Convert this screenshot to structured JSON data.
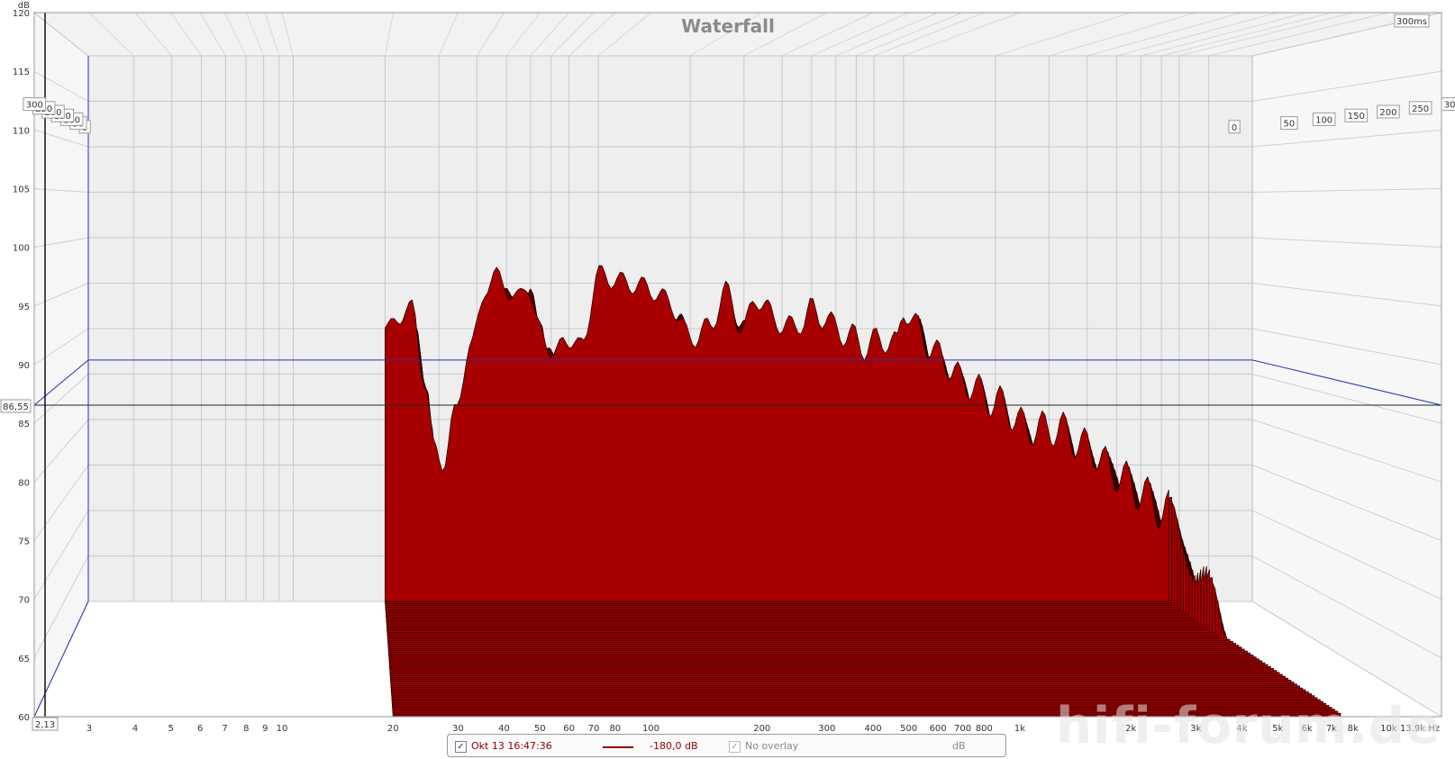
{
  "chart_data": {
    "type": "area",
    "title": "Waterfall",
    "ylabel": "dB",
    "ylim": [
      60,
      120
    ],
    "y_ticks": [
      "60",
      "65",
      "70",
      "75",
      "80",
      "85",
      "90",
      "95",
      "100",
      "105",
      "110",
      "115",
      "120"
    ],
    "xlim": [
      2.13,
      13900
    ],
    "x_scale": "log",
    "x_ticks": [
      {
        "v": 3,
        "label": "3"
      },
      {
        "v": 4,
        "label": "4"
      },
      {
        "v": 5,
        "label": "5"
      },
      {
        "v": 6,
        "label": "6"
      },
      {
        "v": 7,
        "label": "7"
      },
      {
        "v": 8,
        "label": "8"
      },
      {
        "v": 9,
        "label": "9"
      },
      {
        "v": 10,
        "label": "10"
      },
      {
        "v": 20,
        "label": "20"
      },
      {
        "v": 30,
        "label": "30"
      },
      {
        "v": 40,
        "label": "40"
      },
      {
        "v": 50,
        "label": "50"
      },
      {
        "v": 60,
        "label": "60"
      },
      {
        "v": 70,
        "label": "70"
      },
      {
        "v": 80,
        "label": "80"
      },
      {
        "v": 100,
        "label": "100"
      },
      {
        "v": 200,
        "label": "200"
      },
      {
        "v": 300,
        "label": "300"
      },
      {
        "v": 400,
        "label": "400"
      },
      {
        "v": 500,
        "label": "500"
      },
      {
        "v": 600,
        "label": "600"
      },
      {
        "v": 700,
        "label": "700"
      },
      {
        "v": 800,
        "label": "800"
      },
      {
        "v": 1000,
        "label": "1k"
      },
      {
        "v": 2000,
        "label": "2k"
      },
      {
        "v": 3000,
        "label": "3k"
      },
      {
        "v": 4000,
        "label": "4k"
      },
      {
        "v": 5000,
        "label": "5k"
      },
      {
        "v": 6000,
        "label": "6k"
      },
      {
        "v": 7000,
        "label": "7k"
      },
      {
        "v": 8000,
        "label": "8k"
      },
      {
        "v": 10000,
        "label": "10k"
      }
    ],
    "x_end_label": "13,9k",
    "x_unit": "Hz",
    "x_cursor_label": "2,13",
    "y_cursor_label": "86,55",
    "y_cursor_value": 86.55,
    "time_ticks": [
      "0",
      "50",
      "100",
      "150",
      "200",
      "250",
      "300"
    ],
    "time_range_label": "300ms",
    "time_range_ms": 300,
    "slice_count": 60,
    "peaks_time0": [
      {
        "f": 20,
        "db": 90
      },
      {
        "f": 22,
        "db": 91
      },
      {
        "f": 24.5,
        "db": 92.5
      },
      {
        "f": 27,
        "db": 84
      },
      {
        "f": 29,
        "db": 77
      },
      {
        "f": 31,
        "db": 75
      },
      {
        "f": 34,
        "db": 81
      },
      {
        "f": 38,
        "db": 88
      },
      {
        "f": 43,
        "db": 94.5
      },
      {
        "f": 47,
        "db": 96
      },
      {
        "f": 53,
        "db": 93
      },
      {
        "f": 58,
        "db": 95
      },
      {
        "f": 64,
        "db": 90
      },
      {
        "f": 72,
        "db": 87
      },
      {
        "f": 78,
        "db": 89
      },
      {
        "f": 88,
        "db": 88
      },
      {
        "f": 100,
        "db": 96
      },
      {
        "f": 110,
        "db": 95.5
      },
      {
        "f": 125,
        "db": 95
      },
      {
        "f": 145,
        "db": 94.5
      },
      {
        "f": 170,
        "db": 93
      },
      {
        "f": 200,
        "db": 89
      },
      {
        "f": 230,
        "db": 90
      },
      {
        "f": 260,
        "db": 94
      },
      {
        "f": 300,
        "db": 90
      },
      {
        "f": 330,
        "db": 93.5
      },
      {
        "f": 380,
        "db": 91
      },
      {
        "f": 430,
        "db": 90
      },
      {
        "f": 470,
        "db": 91
      },
      {
        "f": 500,
        "db": 92
      },
      {
        "f": 540,
        "db": 91.5
      },
      {
        "f": 600,
        "db": 90
      },
      {
        "f": 680,
        "db": 89
      },
      {
        "f": 760,
        "db": 88
      },
      {
        "f": 850,
        "db": 89
      },
      {
        "f": 950,
        "db": 88
      },
      {
        "f": 1000,
        "db": 92.5
      },
      {
        "f": 1100,
        "db": 90
      },
      {
        "f": 1300,
        "db": 87
      },
      {
        "f": 1600,
        "db": 84
      },
      {
        "f": 2000,
        "db": 82
      },
      {
        "f": 2600,
        "db": 79
      },
      {
        "f": 3200,
        "db": 79
      },
      {
        "f": 4000,
        "db": 77
      },
      {
        "f": 5000,
        "db": 74
      },
      {
        "f": 6000,
        "db": 72
      },
      {
        "f": 7000,
        "db": 70
      }
    ]
  },
  "legend": {
    "trace_label": "Okt 13 16:47:36",
    "trace_color": "#8b0000",
    "level_label": "-180,0 dB",
    "overlay_label": "No overlay",
    "unit_label": "dB",
    "checkmark": "✓"
  },
  "colors": {
    "surface": "#a80000",
    "slice_line": "#2a0000",
    "back_wall": "#efefef",
    "side_wall": "#f7f7f7",
    "grid": "#c8c8c8",
    "axis_blue": "#2233aa"
  },
  "watermark": "hifi-forum.de"
}
